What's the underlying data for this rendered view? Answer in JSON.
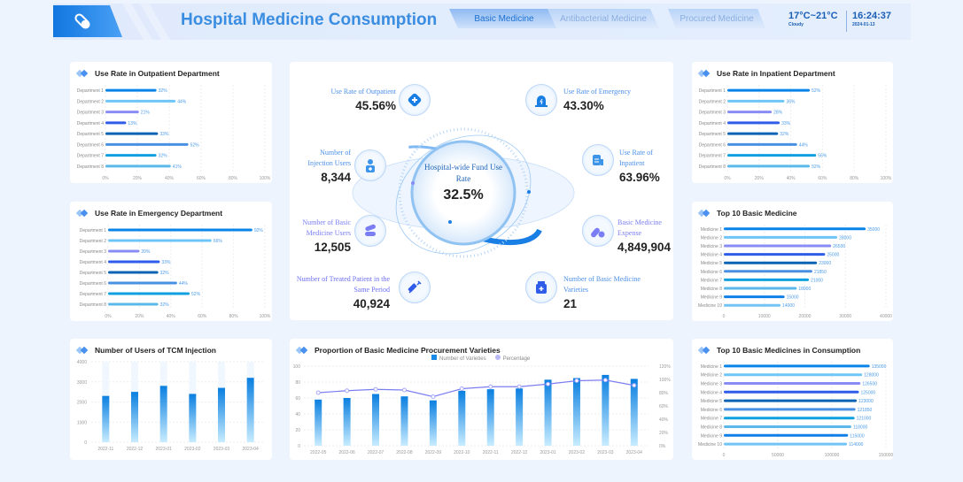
{
  "header": {
    "title": "Hospital Medicine Consumption",
    "tabs": [
      {
        "label": "Basic Medicine",
        "active": true
      },
      {
        "label": "Antibacterial Medicine",
        "active": false
      },
      {
        "label": "Procured Medicine",
        "active": false
      }
    ],
    "weather": {
      "temp": "17°C~21°C",
      "condition": "Cloudy"
    },
    "clock": {
      "time": "16:24:37",
      "date": "2024-01-13"
    },
    "logo_icon": "pill-capsule-icon"
  },
  "colors": {
    "accent": "#3a8de0",
    "bars": [
      "#0a84e8",
      "#6ec6f8",
      "#8a8cf5",
      "#2f5ce8",
      "#0b63b3",
      "#4a90e2",
      "#10a0e0",
      "#5bb8ea",
      "#1080e8",
      "#72c4f5"
    ],
    "line": "#7b7ef2"
  },
  "panels": {
    "outpatient": {
      "title": "Use Rate in Outpatient Department",
      "chart_data": {
        "type": "bar",
        "orientation": "horizontal",
        "categories": [
          "Department 1",
          "Department 2",
          "Department 3",
          "Department 4",
          "Department 5",
          "Department 6",
          "Department 7",
          "Department 8"
        ],
        "values": [
          32,
          44,
          21,
          13,
          33,
          52,
          32,
          41
        ],
        "unit": "%",
        "xlim": [
          0,
          100
        ],
        "ticks": [
          "0%",
          "20%",
          "40%",
          "60%",
          "80%",
          "100%"
        ]
      }
    },
    "emergency": {
      "title": "Use Rate in Emergency Department",
      "chart_data": {
        "type": "bar",
        "orientation": "horizontal",
        "categories": [
          "Department 1",
          "Department 2",
          "Department 3",
          "Department 4",
          "Department 5",
          "Department 6",
          "Department 7",
          "Department 8"
        ],
        "values": [
          92,
          66,
          20,
          33,
          32,
          44,
          52,
          32
        ],
        "unit": "%",
        "xlim": [
          0,
          100
        ],
        "ticks": [
          "0%",
          "20%",
          "40%",
          "60%",
          "80%",
          "100%"
        ]
      }
    },
    "inpatient": {
      "title": "Use Rate in Inpatient Department",
      "chart_data": {
        "type": "bar",
        "orientation": "horizontal",
        "categories": [
          "Department 1",
          "Department 2",
          "Department 3",
          "Department 4",
          "Department 5",
          "Department 6",
          "Department 7",
          "Department 8"
        ],
        "values": [
          52,
          36,
          28,
          33,
          32,
          44,
          56,
          52
        ],
        "unit": "%",
        "xlim": [
          0,
          100
        ],
        "ticks": [
          "0%",
          "20%",
          "40%",
          "60%",
          "80%",
          "100%"
        ]
      }
    },
    "top10": {
      "title": "Top 10 Basic Medicine",
      "chart_data": {
        "type": "bar",
        "orientation": "horizontal",
        "categories": [
          "Medicine 1",
          "Medicine 2",
          "Medicine 3",
          "Medicine 4",
          "Medicine 5",
          "Medicine 6",
          "Medicine 7",
          "Medicine 8",
          "Medicine 9",
          "Medicine 10"
        ],
        "values": [
          35000,
          28000,
          26500,
          25000,
          23000,
          21850,
          21000,
          18000,
          15000,
          14000
        ],
        "unit": "",
        "xlim": [
          0,
          40000
        ],
        "ticks": [
          "0",
          "10000",
          "20000",
          "30000",
          "40000"
        ]
      }
    },
    "top10consumption": {
      "title": "Top 10 Basic Medicines in Consumption",
      "chart_data": {
        "type": "bar",
        "orientation": "horizontal",
        "categories": [
          "Medicine 1",
          "Medicine 2",
          "Medicine 3",
          "Medicine 4",
          "Medicine 5",
          "Medicine 6",
          "Medicine 7",
          "Medicine 8",
          "Medicine 9",
          "Medicine 10"
        ],
        "values": [
          135000,
          128000,
          126500,
          125000,
          123000,
          121850,
          121000,
          118000,
          115000,
          114000
        ],
        "unit": "",
        "xlim": [
          0,
          150000
        ],
        "ticks": [
          "0",
          "50000",
          "100000",
          "150000"
        ]
      }
    },
    "tcm": {
      "title": "Number of Users of TCM Injection",
      "chart_data": {
        "type": "bar",
        "categories": [
          "2022-11",
          "2022-12",
          "2023-01",
          "2023-02",
          "2023-03",
          "2023-04"
        ],
        "values": [
          2300,
          2500,
          2800,
          2400,
          2700,
          3200
        ],
        "ylim": [
          0,
          4000
        ],
        "yticks": [
          "0",
          "1000",
          "2000",
          "3000",
          "4000"
        ]
      }
    },
    "procurement": {
      "title": "Proportion of Basic Medicine Procurement Varieties",
      "chart_data": {
        "type": "bar+line",
        "categories": [
          "2022-05",
          "2022-06",
          "2022-07",
          "2022-08",
          "2022-09",
          "2022-10",
          "2022-11",
          "2022-12",
          "2023-01",
          "2023-02",
          "2023-03",
          "2023-04"
        ],
        "series": [
          {
            "name": "Number of Varieties",
            "type": "bar",
            "values": [
              58,
              60,
              65,
              62,
              57,
              69,
              71,
              72,
              83,
              85,
              89,
              84
            ]
          },
          {
            "name": "Percentage",
            "type": "line",
            "values": [
              80,
              83,
              85,
              84,
              74,
              86,
              89,
              89,
              93,
              98,
              99,
              91
            ]
          }
        ],
        "ylim": [
          0,
          100
        ],
        "yticks": [
          "0",
          "20",
          "40",
          "60",
          "80",
          "100"
        ],
        "y2lim": [
          0,
          120
        ],
        "y2ticks": [
          "0%",
          "20%",
          "40%",
          "60%",
          "80%",
          "100%",
          "120%"
        ],
        "legend": "top-right"
      }
    }
  },
  "center": {
    "gauge": {
      "label": "Hospital-wide Fund Use Rate",
      "value": "32.5%"
    },
    "stats": [
      {
        "label": "Use Rate of Outpatient",
        "value": "45.56%",
        "icon": "medical-cross-icon"
      },
      {
        "label": "Use Rate of Emergency",
        "value": "43.30%",
        "icon": "siren-icon"
      },
      {
        "label": "Number of Injection Users",
        "value": "8,344",
        "icon": "nurse-icon"
      },
      {
        "label": "Use Rate of Inpatient",
        "value": "63.96%",
        "icon": "hospital-bed-icon"
      },
      {
        "label": "Number of Basic Medicine Users",
        "value": "12,505",
        "icon": "capsules-icon"
      },
      {
        "label": "Basic Medicine Expense",
        "value": "4,849,904",
        "icon": "pill-coin-icon"
      },
      {
        "label": "Number of Treated Patient in the Same Period",
        "value": "40,924",
        "icon": "syringe-icon"
      },
      {
        "label": "Number of Basic Medicine Varieties",
        "value": "21",
        "icon": "medicine-bottle-icon"
      }
    ]
  }
}
